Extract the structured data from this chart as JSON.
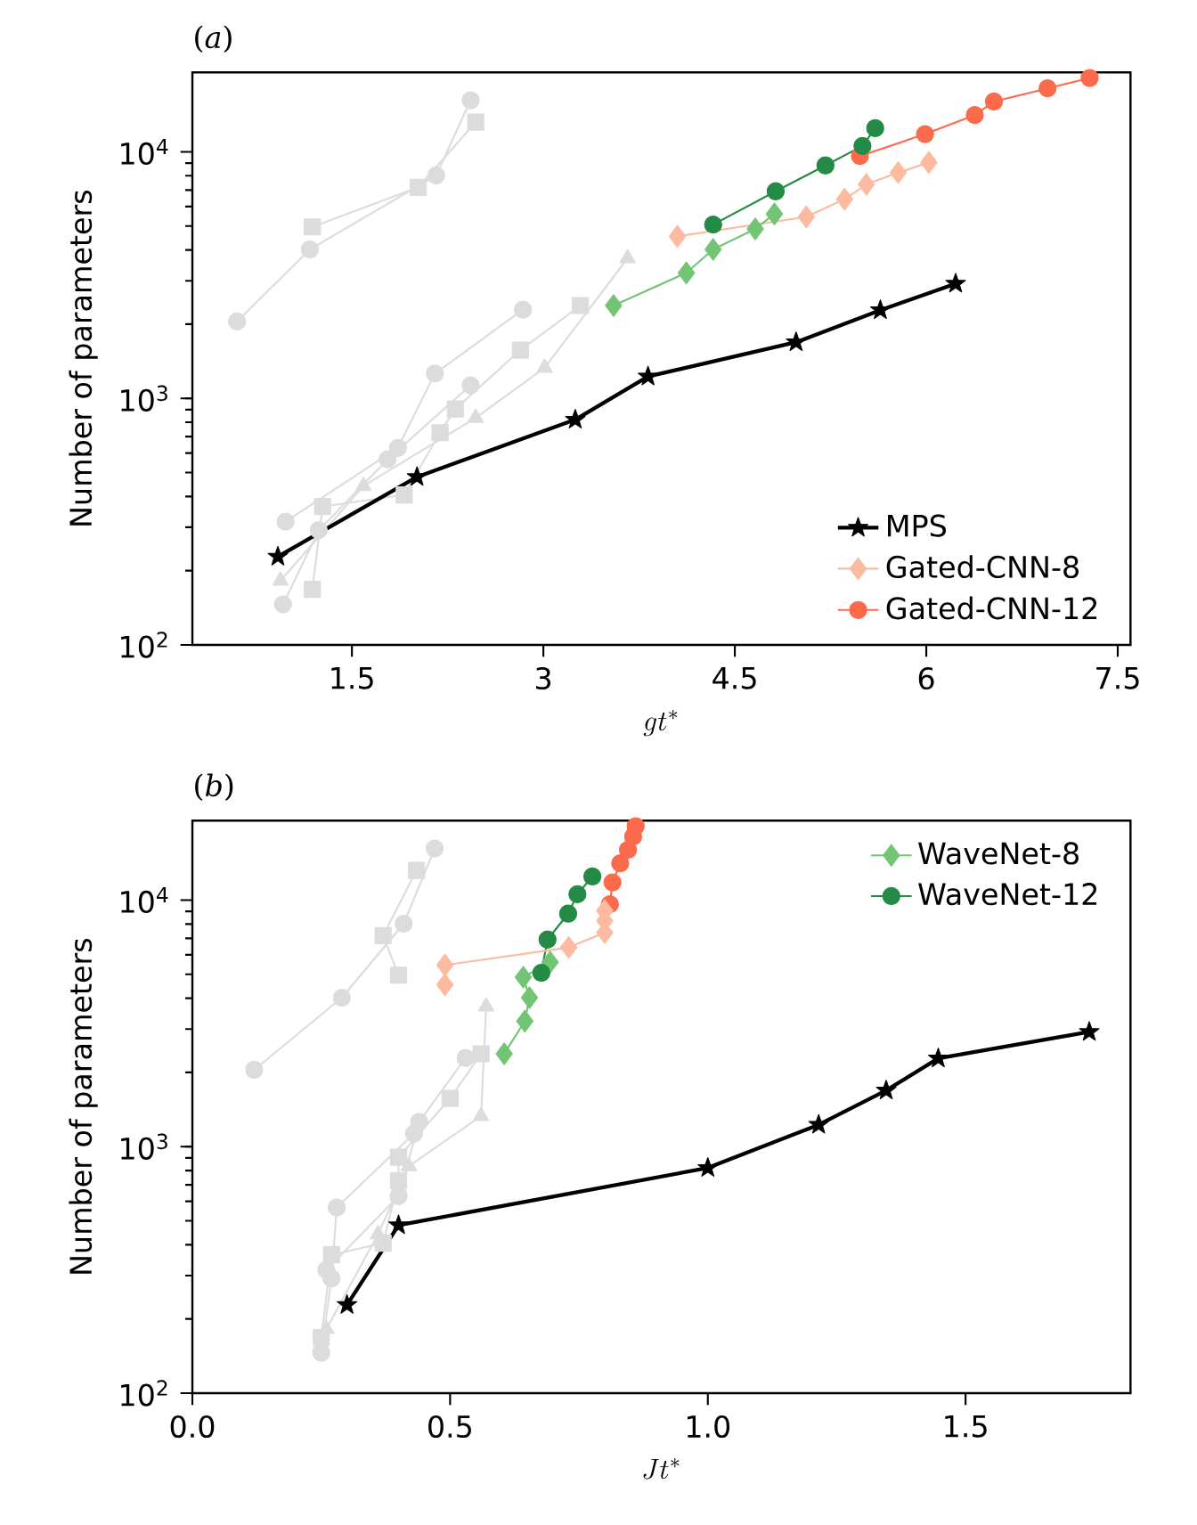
{
  "chart_data": [
    {
      "type": "line",
      "title": "(*a*)",
      "xlabel": "gt^*",
      "ylabel": "Number of parameters",
      "log": "y",
      "legend": "bottom right",
      "xlim": [
        0.25,
        7.6
      ],
      "ylim": [
        100,
        21000
      ],
      "xticks": [
        1.5,
        3,
        4.5,
        6,
        7.5
      ],
      "yticks": [
        {
          "value": 100,
          "label": "10$^{2}$"
        },
        {
          "value": 1000,
          "label": "10$^{3}$"
        },
        {
          "value": 10000,
          "label": "10$^{4}$"
        }
      ],
      "series": [
        {
          "color": "#dcdcdc",
          "marker": "circle",
          "x": [
            0.6,
            1.17,
            2.16,
            2.43
          ],
          "values": [
            2050,
            4020,
            8020,
            16200
          ]
        },
        {
          "color": "#dcdcdc",
          "marker": "square",
          "x": [
            1.19,
            2.02,
            2.47
          ],
          "values": [
            4960,
            7180,
            13200
          ]
        },
        {
          "color": "#dcdcdc",
          "marker": "circle",
          "x": [
            0.98,
            1.86,
            2.15,
            2.84
          ],
          "values": [
            316,
            630,
            1260,
            2290
          ]
        },
        {
          "color": "#dcdcdc",
          "marker": "circle",
          "x": [
            0.96,
            1.24,
            1.78,
            2.43
          ],
          "values": [
            146,
            292,
            566,
            1130
          ]
        },
        {
          "color": "#dcdcdc",
          "marker": "square",
          "x": [
            1.19,
            1.27,
            1.91,
            2.19,
            2.31,
            2.82,
            3.29
          ],
          "values": [
            168,
            364,
            406,
            726,
            906,
            1570,
            2380
          ]
        },
        {
          "color": "#dcdcdc",
          "marker": "triangle",
          "x": [
            0.94,
            1.59,
            2.47,
            3.01,
            3.66
          ],
          "values": [
            182,
            441,
            834,
            1330,
            3700
          ]
        },
        {
          "name": "MPS",
          "color": "#000000",
          "marker": "star",
          "x": [
            0.92,
            2.01,
            3.25,
            3.82,
            4.98,
            5.64,
            6.23
          ],
          "values": [
            228,
            480,
            820,
            1227,
            1690,
            2280,
            2920
          ]
        },
        {
          "name": "Gated-CNN-8",
          "color": "#fcbba1",
          "marker": "diamond",
          "x": [
            4.05,
            5.06,
            5.36,
            5.53,
            5.78,
            6.02
          ],
          "values": [
            4540,
            5450,
            6430,
            7380,
            8240,
            9060
          ]
        },
        {
          "name": "Gated-CNN-12",
          "color": "#fb6a4a",
          "marker": "circle",
          "x": [
            5.48,
            5.99,
            6.38,
            6.53,
            6.95,
            7.28
          ],
          "values": [
            9620,
            11800,
            14100,
            16000,
            18100,
            19950
          ]
        },
        {
          "color": "#74c476",
          "marker": "diamond",
          "x": [
            3.55,
            4.12,
            4.33,
            4.66,
            4.81
          ],
          "values": [
            2380,
            3230,
            4020,
            4870,
            5600
          ]
        },
        {
          "color": "#238b45",
          "marker": "circle",
          "x": [
            4.33,
            4.82,
            5.21,
            5.5,
            5.6
          ],
          "values": [
            5070,
            6920,
            8810,
            10570,
            12470
          ]
        }
      ]
    },
    {
      "type": "line",
      "title": "(*b*)",
      "xlabel": "Jt^*",
      "ylabel": "Number of parameters",
      "log": "y",
      "legend": "top right",
      "xlim": [
        0,
        1.82
      ],
      "ylim": [
        100,
        21000
      ],
      "xticks": [
        {
          "value": 0,
          "label": "0.0"
        },
        {
          "value": 0.5,
          "label": "0.5"
        },
        {
          "value": 1,
          "label": "1.0"
        },
        {
          "value": 1.5,
          "label": "1.5"
        }
      ],
      "yticks": [
        {
          "value": 100,
          "label": "10$^{2}$"
        },
        {
          "value": 1000,
          "label": "10$^{3}$"
        },
        {
          "value": 10000,
          "label": "10$^{4}$"
        }
      ],
      "series": [
        {
          "color": "#dcdcdc",
          "marker": "circle",
          "x": [
            0.12,
            0.29,
            0.41,
            0.47
          ],
          "values": [
            2050,
            4020,
            8020,
            16200
          ]
        },
        {
          "color": "#dcdcdc",
          "marker": "square",
          "x": [
            0.4,
            0.37,
            0.435
          ],
          "values": [
            4960,
            7180,
            13200
          ]
        },
        {
          "color": "#dcdcdc",
          "marker": "circle",
          "x": [
            0.26,
            0.4,
            0.44,
            0.53
          ],
          "values": [
            316,
            630,
            1260,
            2290
          ]
        },
        {
          "color": "#dcdcdc",
          "marker": "circle",
          "x": [
            0.25,
            0.27,
            0.28,
            0.43
          ],
          "values": [
            146,
            292,
            566,
            1130
          ]
        },
        {
          "color": "#dcdcdc",
          "marker": "square",
          "x": [
            0.25,
            0.27,
            0.37,
            0.4,
            0.4,
            0.5,
            0.56
          ],
          "values": [
            168,
            364,
            406,
            726,
            906,
            1570,
            2380
          ]
        },
        {
          "color": "#dcdcdc",
          "marker": "triangle",
          "x": [
            0.26,
            0.36,
            0.42,
            0.56,
            0.57
          ],
          "values": [
            182,
            441,
            834,
            1330,
            3700
          ]
        },
        {
          "color": "#000000",
          "marker": "star",
          "x": [
            0.3,
            0.4,
            1.0,
            1.215,
            1.346,
            1.447,
            1.74
          ],
          "values": [
            228,
            480,
            820,
            1227,
            1690,
            2280,
            2920
          ]
        },
        {
          "name": "WaveNet-8",
          "color": "#74c476",
          "marker": "diamond",
          "x": [
            0.605,
            0.645,
            0.654,
            0.642,
            0.694
          ],
          "values": [
            2380,
            3230,
            4020,
            4870,
            5600
          ]
        },
        {
          "name": "WaveNet-12",
          "color": "#238b45",
          "marker": "circle",
          "x": [
            0.677,
            0.689,
            0.729,
            0.747,
            0.776
          ],
          "values": [
            5070,
            6920,
            8810,
            10570,
            12470
          ]
        },
        {
          "color": "#fb6a4a",
          "marker": "circle",
          "x": [
            0.81,
            0.815,
            0.83,
            0.845,
            0.855,
            0.86
          ],
          "values": [
            9620,
            11800,
            14100,
            16000,
            18100,
            19950
          ]
        },
        {
          "color": "#fcbba1",
          "marker": "diamond",
          "x": [
            0.49,
            0.49,
            0.73,
            0.8,
            0.8,
            0.8
          ],
          "values": [
            4540,
            5450,
            6430,
            7380,
            8240,
            9060
          ]
        }
      ]
    }
  ]
}
